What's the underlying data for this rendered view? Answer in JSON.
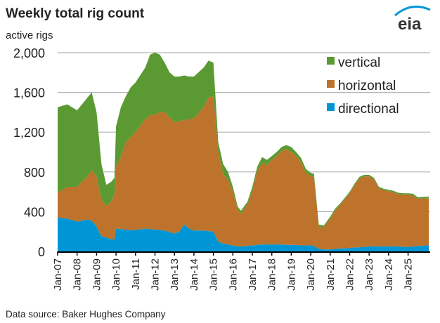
{
  "header": {
    "title": "Weekly total rig count",
    "logo_text": "eia"
  },
  "footer": {
    "source": "Data source: Baker Hughes Company"
  },
  "chart_data": {
    "type": "area",
    "stacked": true,
    "title": "Weekly total rig count",
    "ylabel": "active rigs",
    "xlabel": "",
    "ylim": [
      0,
      2000
    ],
    "yticks": [
      "0",
      "400",
      "800",
      "1,200",
      "1,600",
      "2,000"
    ],
    "ytick_values": [
      0,
      400,
      800,
      1200,
      1600,
      2000
    ],
    "xticks": [
      "Jan-07",
      "Jan-08",
      "Jan-09",
      "Jan-10",
      "Jan-11",
      "Jan-12",
      "Jan-13",
      "Jan-14",
      "Jan-15",
      "Jan-16",
      "Jan-17",
      "Jan-18",
      "Jan-19",
      "Jan-20",
      "Jan-21",
      "Jan-22",
      "Jan-23",
      "Jan-24",
      "Jan-25"
    ],
    "grid": true,
    "legend_position": "top-right",
    "x": [
      "2007-01",
      "2007-07",
      "2008-01",
      "2008-07",
      "2008-10",
      "2009-01",
      "2009-04",
      "2009-07",
      "2009-10",
      "2009-12",
      "2010-01",
      "2010-04",
      "2010-07",
      "2010-10",
      "2011-01",
      "2011-07",
      "2011-10",
      "2012-01",
      "2012-04",
      "2012-07",
      "2012-10",
      "2013-01",
      "2013-04",
      "2013-07",
      "2013-10",
      "2014-01",
      "2014-07",
      "2014-10",
      "2015-01",
      "2015-04",
      "2015-07",
      "2015-10",
      "2016-01",
      "2016-04",
      "2016-06",
      "2016-10",
      "2017-01",
      "2017-04",
      "2017-07",
      "2017-10",
      "2018-01",
      "2018-04",
      "2018-07",
      "2018-10",
      "2019-01",
      "2019-04",
      "2019-07",
      "2019-10",
      "2020-01",
      "2020-03",
      "2020-06",
      "2020-09",
      "2021-01",
      "2021-04",
      "2021-07",
      "2021-10",
      "2022-01",
      "2022-04",
      "2022-07",
      "2022-10",
      "2023-01",
      "2023-04",
      "2023-07",
      "2023-10",
      "2024-01",
      "2024-04",
      "2024-07",
      "2024-10",
      "2025-01",
      "2025-04",
      "2025-07",
      "2025-12"
    ],
    "series": [
      {
        "name": "directional",
        "color": "#0096d6",
        "values": [
          340,
          330,
          300,
          320,
          310,
          250,
          150,
          140,
          120,
          120,
          230,
          225,
          220,
          215,
          215,
          230,
          225,
          220,
          215,
          210,
          195,
          180,
          200,
          270,
          230,
          210,
          210,
          205,
          200,
          100,
          80,
          70,
          60,
          50,
          50,
          55,
          60,
          65,
          70,
          70,
          70,
          70,
          70,
          65,
          65,
          65,
          60,
          60,
          60,
          55,
          25,
          20,
          20,
          25,
          30,
          30,
          35,
          40,
          40,
          45,
          50,
          50,
          50,
          50,
          50,
          50,
          50,
          45,
          45,
          50,
          55,
          60
        ]
      },
      {
        "name": "horizontal",
        "color": "#bd732b",
        "values": [
          250,
          320,
          350,
          430,
          510,
          500,
          370,
          320,
          380,
          460,
          620,
          725,
          880,
          935,
          985,
          1100,
          1145,
          1160,
          1185,
          1190,
          1155,
          1120,
          1110,
          1050,
          1100,
          1130,
          1240,
          1345,
          1360,
          900,
          700,
          650,
          540,
          370,
          330,
          415,
          550,
          745,
          820,
          800,
          850,
          890,
          940,
          965,
          935,
          895,
          840,
          730,
          700,
          695,
          225,
          220,
          310,
          385,
          435,
          495,
          550,
          625,
          695,
          710,
          705,
          675,
          585,
          565,
          555,
          545,
          525,
          525,
          525,
          515,
          475,
          475
        ]
      },
      {
        "name": "vertical",
        "color": "#5b9a32",
        "values": [
          860,
          830,
          770,
          790,
          780,
          650,
          360,
          210,
          200,
          160,
          410,
          500,
          460,
          500,
          500,
          520,
          610,
          620,
          580,
          500,
          450,
          460,
          450,
          450,
          430,
          420,
          400,
          370,
          340,
          100,
          100,
          80,
          50,
          30,
          30,
          30,
          40,
          40,
          60,
          50,
          40,
          40,
          40,
          40,
          50,
          40,
          40,
          40,
          30,
          30,
          20,
          20,
          20,
          20,
          15,
          15,
          15,
          15,
          15,
          15,
          15,
          15,
          15,
          15,
          15,
          15,
          15,
          15,
          15,
          15,
          15,
          15
        ]
      }
    ],
    "legend_order": [
      "vertical",
      "horizontal",
      "directional"
    ]
  }
}
